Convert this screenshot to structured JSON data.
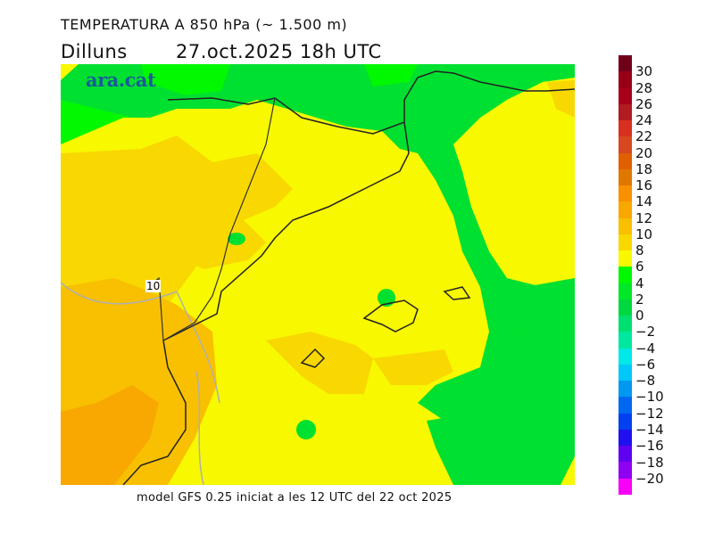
{
  "header": {
    "title": "TEMPERATURA A 850 hPa (~ 1.500 m)",
    "day": "Dilluns",
    "datetime": "27.oct.2025 18h UTC"
  },
  "logo": "ara.cat",
  "footer": "model GFS 0.25 iniciat a les 12 UTC del 22 oct 2025",
  "map": {
    "contour_label": "10"
  },
  "colorbar": {
    "labels": [
      "30",
      "28",
      "26",
      "24",
      "22",
      "20",
      "18",
      "16",
      "14",
      "12",
      "10",
      "8",
      "6",
      "4",
      "2",
      "0",
      "−2",
      "−4",
      "−6",
      "−8",
      "−10",
      "−12",
      "−14",
      "−16",
      "−18",
      "−20"
    ],
    "colors": [
      "#700018",
      "#980018",
      "#a8001c",
      "#b01c20",
      "#d83020",
      "#d84820",
      "#e06000",
      "#e07800",
      "#f89000",
      "#f8a800",
      "#f8c000",
      "#f8d800",
      "#f8f800",
      "#00f800",
      "#00e828",
      "#00d840",
      "#00e070",
      "#00e8a0",
      "#00e8e8",
      "#00c8f8",
      "#0098f0",
      "#0068f0",
      "#0040f0",
      "#2010f0",
      "#6000f0",
      "#9000f0",
      "#f800f8"
    ]
  }
}
